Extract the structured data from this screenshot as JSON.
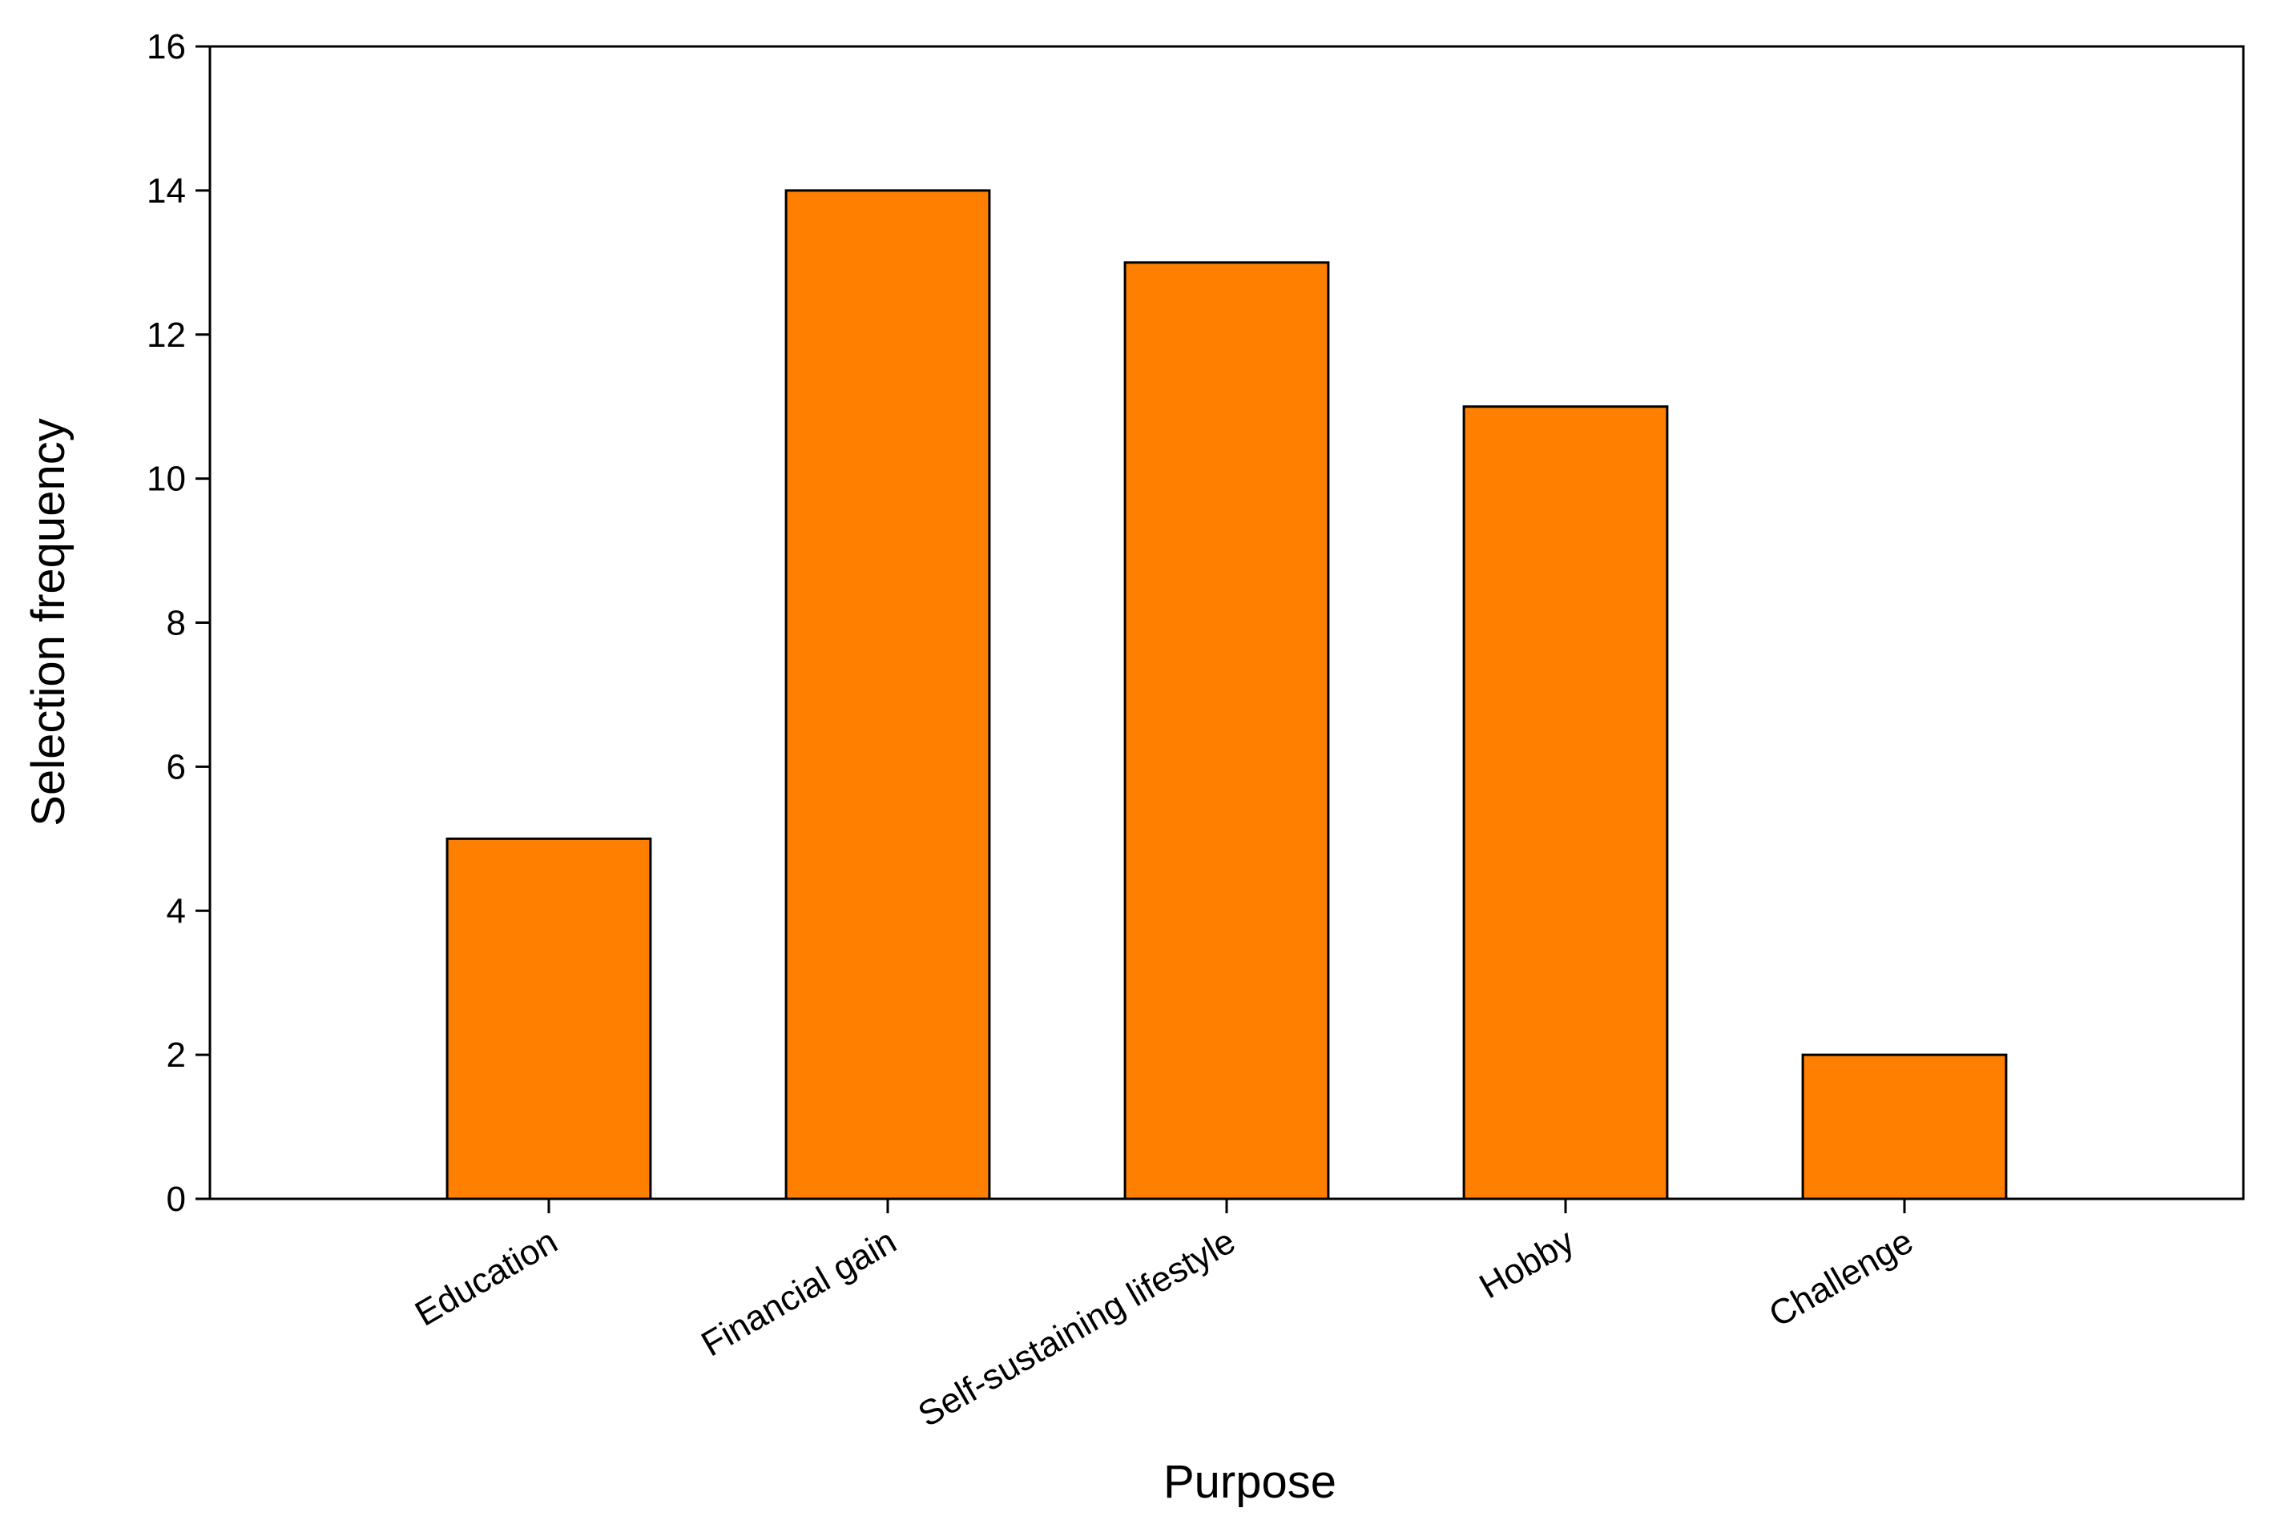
{
  "chart_data": {
    "type": "bar",
    "x_label": "Purpose",
    "y_label": "Selection frequency",
    "categories": [
      "Education",
      "Financial gain",
      "Self-sustaining lifestyle",
      "Hobby",
      "Challenge"
    ],
    "values": [
      5,
      14,
      13,
      11,
      2
    ],
    "color": "#ff8000",
    "ylim": [
      0,
      16
    ],
    "yticks": [
      0,
      2,
      4,
      6,
      8,
      10,
      12,
      14,
      16
    ],
    "grid": false
  }
}
